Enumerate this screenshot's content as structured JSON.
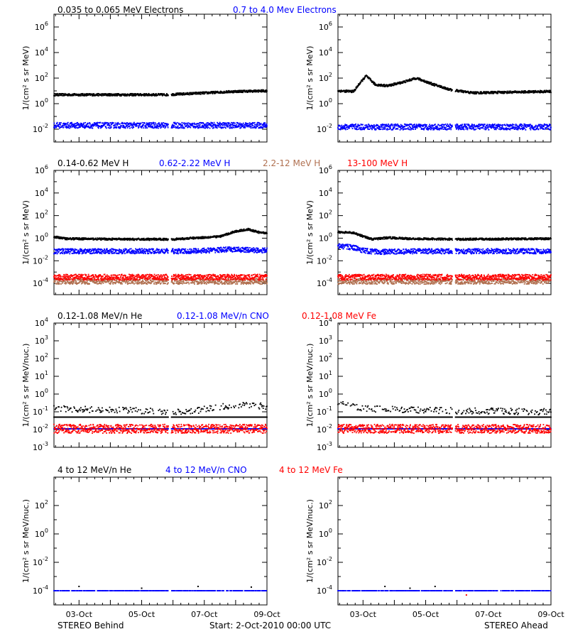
{
  "colors": {
    "black": "#000000",
    "blue": "#0000ff",
    "tan": "#b07050",
    "red": "#ff0000"
  },
  "titles": {
    "row0": [
      {
        "text": "0.035 to 0.065 MeV Electrons",
        "color": "black"
      },
      {
        "text": "0.7 to 4.0 Mev Electrons",
        "color": "blue"
      }
    ],
    "row1": [
      {
        "text": "0.14-0.62 MeV H",
        "color": "black"
      },
      {
        "text": "0.62-2.22 MeV H",
        "color": "blue"
      },
      {
        "text": "2.2-12 MeV H",
        "color": "tan"
      },
      {
        "text": "13-100 MeV H",
        "color": "red"
      }
    ],
    "row2": [
      {
        "text": "0.12-1.08 MeV/n He",
        "color": "black"
      },
      {
        "text": "0.12-1.08 MeV/n CNO",
        "color": "blue"
      },
      {
        "text": "0.12-1.08 MeV Fe",
        "color": "red"
      }
    ],
    "row3": [
      {
        "text": "4 to 12 MeV/n He",
        "color": "black"
      },
      {
        "text": "4 to 12 MeV/n CNO",
        "color": "blue"
      },
      {
        "text": "4 to 12 MeV Fe",
        "color": "red"
      }
    ]
  },
  "ylabels": {
    "row0": "1/(cm² s sr MeV)",
    "row1": "1/(cm² s sr MeV)",
    "row2": "1/(cm² s sr MeV/nuc.)",
    "row3": "1/(cm² s sr MeV/nuc.)"
  },
  "xticks": [
    "03-Oct",
    "05-Oct",
    "07-Oct",
    "09-Oct"
  ],
  "footer": {
    "left": "STEREO Behind",
    "center": "Start:  2-Oct-2010 00:00 UTC",
    "right": "STEREO Ahead"
  },
  "chart_data": {
    "type": "scatter",
    "x_unit": "day of Oct 2010",
    "x_range": [
      2.2,
      9.0
    ],
    "panels": [
      {
        "row": 0,
        "col": 0,
        "ylog": true,
        "yexp_range": [
          -3,
          7
        ],
        "yticks_exp": [
          -2,
          0,
          2,
          4,
          6
        ],
        "series": [
          {
            "name": "0.035 to 0.065 MeV Electrons",
            "color": "black",
            "points": [
              [
                2.2,
                5
              ],
              [
                4.0,
                5
              ],
              [
                5.8,
                5
              ],
              [
                6.5,
                6
              ],
              [
                8.0,
                9
              ],
              [
                9.0,
                10
              ]
            ]
          },
          {
            "name": "0.7 to 4.0 Mev Electrons",
            "color": "blue",
            "points": [
              [
                2.2,
                0.02
              ],
              [
                9.0,
                0.02
              ]
            ]
          }
        ]
      },
      {
        "row": 0,
        "col": 1,
        "ylog": true,
        "yexp_range": [
          -3,
          7
        ],
        "yticks_exp": [
          -2,
          0,
          2,
          4,
          6
        ],
        "series": [
          {
            "name": "0.035 to 0.065 MeV Electrons",
            "color": "black",
            "points": [
              [
                2.2,
                10
              ],
              [
                2.7,
                9
              ],
              [
                2.9,
                40
              ],
              [
                3.1,
                150
              ],
              [
                3.4,
                30
              ],
              [
                3.8,
                25
              ],
              [
                4.3,
                50
              ],
              [
                4.7,
                100
              ],
              [
                5.2,
                35
              ],
              [
                5.8,
                12
              ],
              [
                6.5,
                7
              ],
              [
                9.0,
                9
              ]
            ]
          },
          {
            "name": "0.7 to 4.0 Mev Electrons",
            "color": "blue",
            "points": [
              [
                2.2,
                0.015
              ],
              [
                9.0,
                0.015
              ]
            ]
          }
        ]
      },
      {
        "row": 1,
        "col": 0,
        "ylog": true,
        "yexp_range": [
          -5,
          6
        ],
        "yticks_exp": [
          -4,
          -2,
          0,
          2,
          4,
          6
        ],
        "series": [
          {
            "name": "0.14-0.62 MeV H",
            "color": "black",
            "points": [
              [
                2.2,
                1.3
              ],
              [
                2.6,
                0.9
              ],
              [
                4.5,
                0.8
              ],
              [
                6.0,
                0.8
              ],
              [
                7.5,
                1.4
              ],
              [
                8.0,
                4
              ],
              [
                8.4,
                6
              ],
              [
                8.8,
                3
              ],
              [
                9.0,
                3
              ]
            ]
          },
          {
            "name": "0.62-2.22 MeV H",
            "color": "blue",
            "points": [
              [
                2.2,
                0.07
              ],
              [
                6.5,
                0.07
              ],
              [
                7.8,
                0.1
              ],
              [
                9.0,
                0.08
              ]
            ]
          },
          {
            "name": "2.2-12 MeV H",
            "color": "tan",
            "points": [
              [
                2.2,
                0.00015
              ],
              [
                9.0,
                0.00015
              ]
            ]
          },
          {
            "name": "13-100 MeV H",
            "color": "red",
            "points": [
              [
                2.2,
                0.00035
              ],
              [
                9.0,
                0.00035
              ]
            ]
          }
        ]
      },
      {
        "row": 1,
        "col": 1,
        "ylog": true,
        "yexp_range": [
          -5,
          6
        ],
        "yticks_exp": [
          -4,
          -2,
          0,
          2,
          4,
          6
        ],
        "series": [
          {
            "name": "0.14-0.62 MeV H",
            "color": "black",
            "points": [
              [
                2.2,
                3.5
              ],
              [
                2.7,
                3
              ],
              [
                3.0,
                1.5
              ],
              [
                3.3,
                0.8
              ],
              [
                3.8,
                1.1
              ],
              [
                4.5,
                0.9
              ],
              [
                6.0,
                0.8
              ],
              [
                9.0,
                0.9
              ]
            ]
          },
          {
            "name": "0.62-2.22 MeV H",
            "color": "blue",
            "points": [
              [
                2.2,
                0.2
              ],
              [
                2.7,
                0.15
              ],
              [
                3.0,
                0.08
              ],
              [
                3.5,
                0.06
              ],
              [
                5.0,
                0.07
              ],
              [
                9.0,
                0.07
              ]
            ]
          },
          {
            "name": "2.2-12 MeV H",
            "color": "tan",
            "points": [
              [
                2.2,
                0.00015
              ],
              [
                9.0,
                0.00015
              ]
            ]
          },
          {
            "name": "13-100 MeV H",
            "color": "red",
            "points": [
              [
                2.2,
                0.00035
              ],
              [
                9.0,
                0.00035
              ]
            ]
          }
        ]
      },
      {
        "row": 2,
        "col": 0,
        "ylog": true,
        "yexp_range": [
          -3,
          4
        ],
        "yticks_exp": [
          -3,
          -2,
          -1,
          0,
          1,
          2,
          3,
          4
        ],
        "series": [
          {
            "name": "0.12-1.08 MeV/n He",
            "color": "black",
            "points": [
              [
                2.2,
                0.05
              ],
              [
                9.0,
                0.05
              ]
            ],
            "upper": [
              [
                2.2,
                0.15
              ],
              [
                6.5,
                0.1
              ],
              [
                8.0,
                0.25
              ],
              [
                9.0,
                0.2
              ]
            ]
          },
          {
            "name": "0.12-1.08 MeV/n CNO",
            "color": "blue",
            "points": [
              [
                2.2,
                0.011
              ],
              [
                9.0,
                0.011
              ]
            ]
          },
          {
            "name": "0.12-1.08 MeV Fe",
            "color": "red",
            "points": [
              [
                2.2,
                0.011
              ],
              [
                9.0,
                0.011
              ]
            ]
          }
        ]
      },
      {
        "row": 2,
        "col": 1,
        "ylog": true,
        "yexp_range": [
          -3,
          4
        ],
        "yticks_exp": [
          -3,
          -2,
          -1,
          0,
          1,
          2,
          3,
          4
        ],
        "series": [
          {
            "name": "0.12-1.08 MeV/n He",
            "color": "black",
            "points": [
              [
                2.2,
                0.05
              ],
              [
                9.0,
                0.05
              ]
            ],
            "upper": [
              [
                2.2,
                0.3
              ],
              [
                3.0,
                0.15
              ],
              [
                5.0,
                0.12
              ],
              [
                9.0,
                0.1
              ]
            ]
          },
          {
            "name": "0.12-1.08 MeV/n CNO",
            "color": "blue",
            "points": [
              [
                2.2,
                0.011
              ],
              [
                9.0,
                0.011
              ]
            ]
          },
          {
            "name": "0.12-1.08 MeV Fe",
            "color": "red",
            "points": [
              [
                2.2,
                0.011
              ],
              [
                9.0,
                0.011
              ]
            ]
          }
        ]
      },
      {
        "row": 3,
        "col": 0,
        "ylog": true,
        "yexp_range": [
          -5,
          4
        ],
        "yticks_exp": [
          -4,
          -2,
          0,
          2
        ],
        "series": [
          {
            "name": "4 to 12 MeV/n He",
            "color": "black",
            "points": [
              [
                3.0,
                0.0002
              ],
              [
                5.0,
                0.00015
              ],
              [
                6.8,
                0.0002
              ],
              [
                8.5,
                0.00018
              ]
            ]
          },
          {
            "name": "4 to 12 MeV/n CNO",
            "color": "blue",
            "points": [
              [
                2.2,
                0.0001
              ],
              [
                9.0,
                0.0001
              ]
            ]
          },
          {
            "name": "4 to 12 MeV Fe",
            "color": "red",
            "points": []
          }
        ]
      },
      {
        "row": 3,
        "col": 1,
        "ylog": true,
        "yexp_range": [
          -5,
          4
        ],
        "yticks_exp": [
          -4,
          -2,
          0,
          2
        ],
        "series": [
          {
            "name": "4 to 12 MeV/n He",
            "color": "black",
            "points": [
              [
                3.7,
                0.0002
              ],
              [
                4.5,
                0.00015
              ],
              [
                5.3,
                0.0002
              ]
            ]
          },
          {
            "name": "4 to 12 MeV/n CNO",
            "color": "blue",
            "points": [
              [
                2.2,
                0.0001
              ],
              [
                9.0,
                0.0001
              ]
            ]
          },
          {
            "name": "4 to 12 MeV Fe",
            "color": "red",
            "points": [
              [
                6.3,
                5e-05
              ]
            ]
          }
        ]
      }
    ]
  }
}
